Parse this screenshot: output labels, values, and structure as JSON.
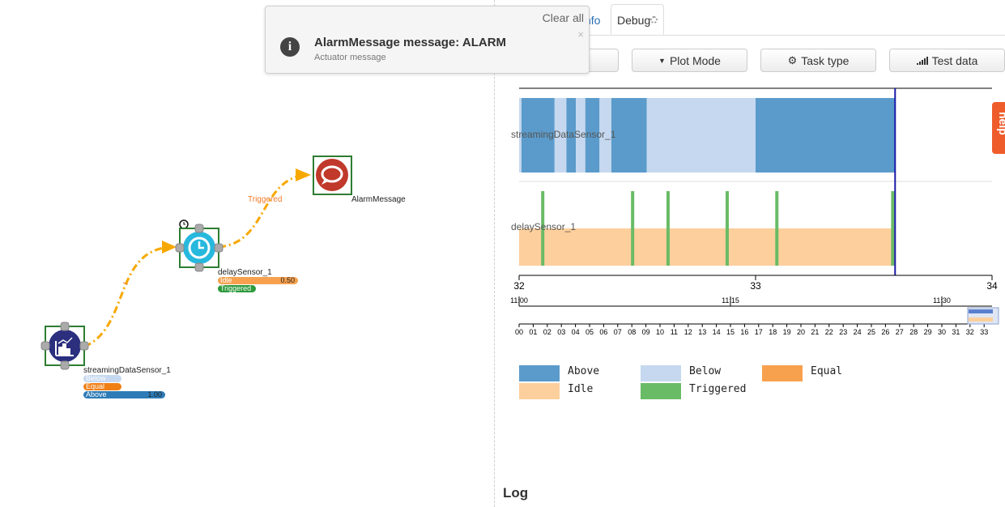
{
  "notification": {
    "clear_all": "Clear all",
    "close": "×",
    "icon": "i",
    "title": "AlarmMessage message: ALARM",
    "subtitle": "Actuator message"
  },
  "tabs": {
    "info": "nfo",
    "debug": "Debug"
  },
  "toolbar": {
    "partial_button": "",
    "plot_mode": "Plot Mode",
    "task_type": "Task type",
    "test_data": "Test data"
  },
  "help": "help",
  "canvas": {
    "nodes": [
      {
        "name": "streamingDataSensor_1",
        "states": [
          {
            "label": "Below",
            "value": ""
          },
          {
            "label": "Equal",
            "value": ""
          },
          {
            "label": "Above",
            "value": "1.00"
          }
        ]
      },
      {
        "name": "delaySensor_1",
        "states": [
          {
            "label": "Idle",
            "value": "0.50"
          },
          {
            "label": "Triggered",
            "value": ""
          }
        ]
      },
      {
        "name": "AlarmMessage"
      }
    ],
    "edge_label": "Triggered"
  },
  "colors": {
    "above": "#5b9bcb",
    "below": "#c5d8ef",
    "equal": "#f7a14e",
    "idle": "#fdcf9c",
    "triggered": "#6abb66",
    "cursor": "#1a1aa8",
    "edge": "#f7a800",
    "help": "#ef5c2b"
  },
  "chart_data": {
    "type": "timeline",
    "x_ticks": [
      "32",
      "33",
      "34"
    ],
    "xlim": [
      32,
      34
    ],
    "cursor_x": 33.59,
    "tracks": [
      {
        "label": "streamingDataSensor_1",
        "segments": [
          {
            "state": "Below",
            "start": 32.0,
            "end": 32.01
          },
          {
            "state": "Above",
            "start": 32.01,
            "end": 32.15
          },
          {
            "state": "Below",
            "start": 32.15,
            "end": 32.2
          },
          {
            "state": "Above",
            "start": 32.2,
            "end": 32.24
          },
          {
            "state": "Below",
            "start": 32.24,
            "end": 32.28
          },
          {
            "state": "Above",
            "start": 32.28,
            "end": 32.34
          },
          {
            "state": "Below",
            "start": 32.34,
            "end": 32.39
          },
          {
            "state": "Above",
            "start": 32.39,
            "end": 32.54
          },
          {
            "state": "Below",
            "start": 32.54,
            "end": 33.0
          },
          {
            "state": "Above",
            "start": 33.0,
            "end": 33.59
          }
        ]
      },
      {
        "label": "delaySensor_1",
        "segments": [
          {
            "state": "Idle",
            "start": 32.0,
            "end": 33.59
          }
        ],
        "triggers": [
          32.1,
          32.48,
          32.63,
          32.88,
          33.09,
          33.58
        ]
      }
    ],
    "overview": {
      "major_ticks": [
        "11:00",
        "11:15",
        "11:30"
      ],
      "minor_ticks": [
        "00",
        "01",
        "02",
        "03",
        "04",
        "05",
        "06",
        "07",
        "08",
        "09",
        "10",
        "11",
        "12",
        "13",
        "14",
        "15",
        "16",
        "17",
        "18",
        "19",
        "20",
        "21",
        "22",
        "23",
        "24",
        "25",
        "26",
        "27",
        "28",
        "29",
        "30",
        "31",
        "32",
        "33"
      ]
    },
    "legend": [
      "Above",
      "Below",
      "Equal",
      "Idle",
      "Triggered"
    ]
  },
  "log": {
    "title": "Log"
  }
}
